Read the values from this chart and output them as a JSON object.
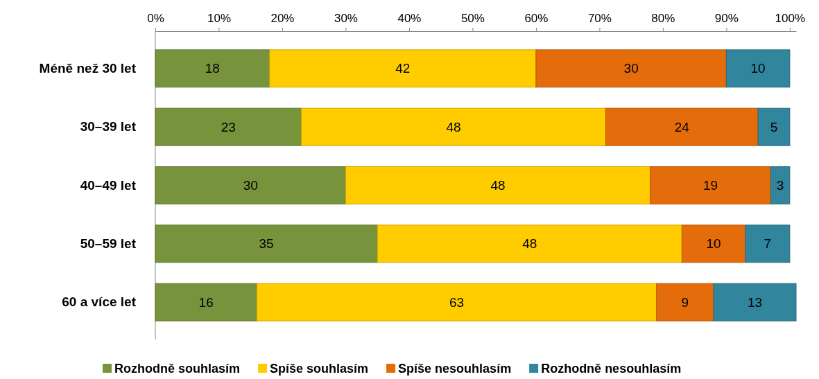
{
  "chart_data": {
    "type": "bar",
    "orientation": "horizontal",
    "stacked": true,
    "data_labels": true,
    "legend": "bottom",
    "categories": [
      "Méně než 30 let",
      "30–39 let",
      "40–49 let",
      "50–59 let",
      "60 a více let"
    ],
    "series": [
      {
        "name": "Rozhodně souhlasím",
        "color": "#77933c",
        "values": [
          18,
          23,
          30,
          35,
          16
        ]
      },
      {
        "name": "Spíše souhlasím",
        "color": "#ffcc00",
        "values": [
          42,
          48,
          48,
          48,
          63
        ]
      },
      {
        "name": "Spíše nesouhlasím",
        "color": "#e46c0a",
        "values": [
          30,
          24,
          19,
          10,
          9
        ]
      },
      {
        "name": "Rozhodně nesouhlasím",
        "color": "#31859c",
        "values": [
          10,
          5,
          3,
          7,
          13
        ]
      }
    ],
    "xlim": [
      0,
      101
    ],
    "xticks": [
      {
        "value": 0,
        "label": "0%"
      },
      {
        "value": 10,
        "label": "10%"
      },
      {
        "value": 20,
        "label": "20%"
      },
      {
        "value": 30,
        "label": "30%"
      },
      {
        "value": 40,
        "label": "40%"
      },
      {
        "value": 50,
        "label": "50%"
      },
      {
        "value": 60,
        "label": "60%"
      },
      {
        "value": 70,
        "label": "70%"
      },
      {
        "value": 80,
        "label": "80%"
      },
      {
        "value": 90,
        "label": "90%"
      },
      {
        "value": 100,
        "label": "100%"
      }
    ]
  }
}
